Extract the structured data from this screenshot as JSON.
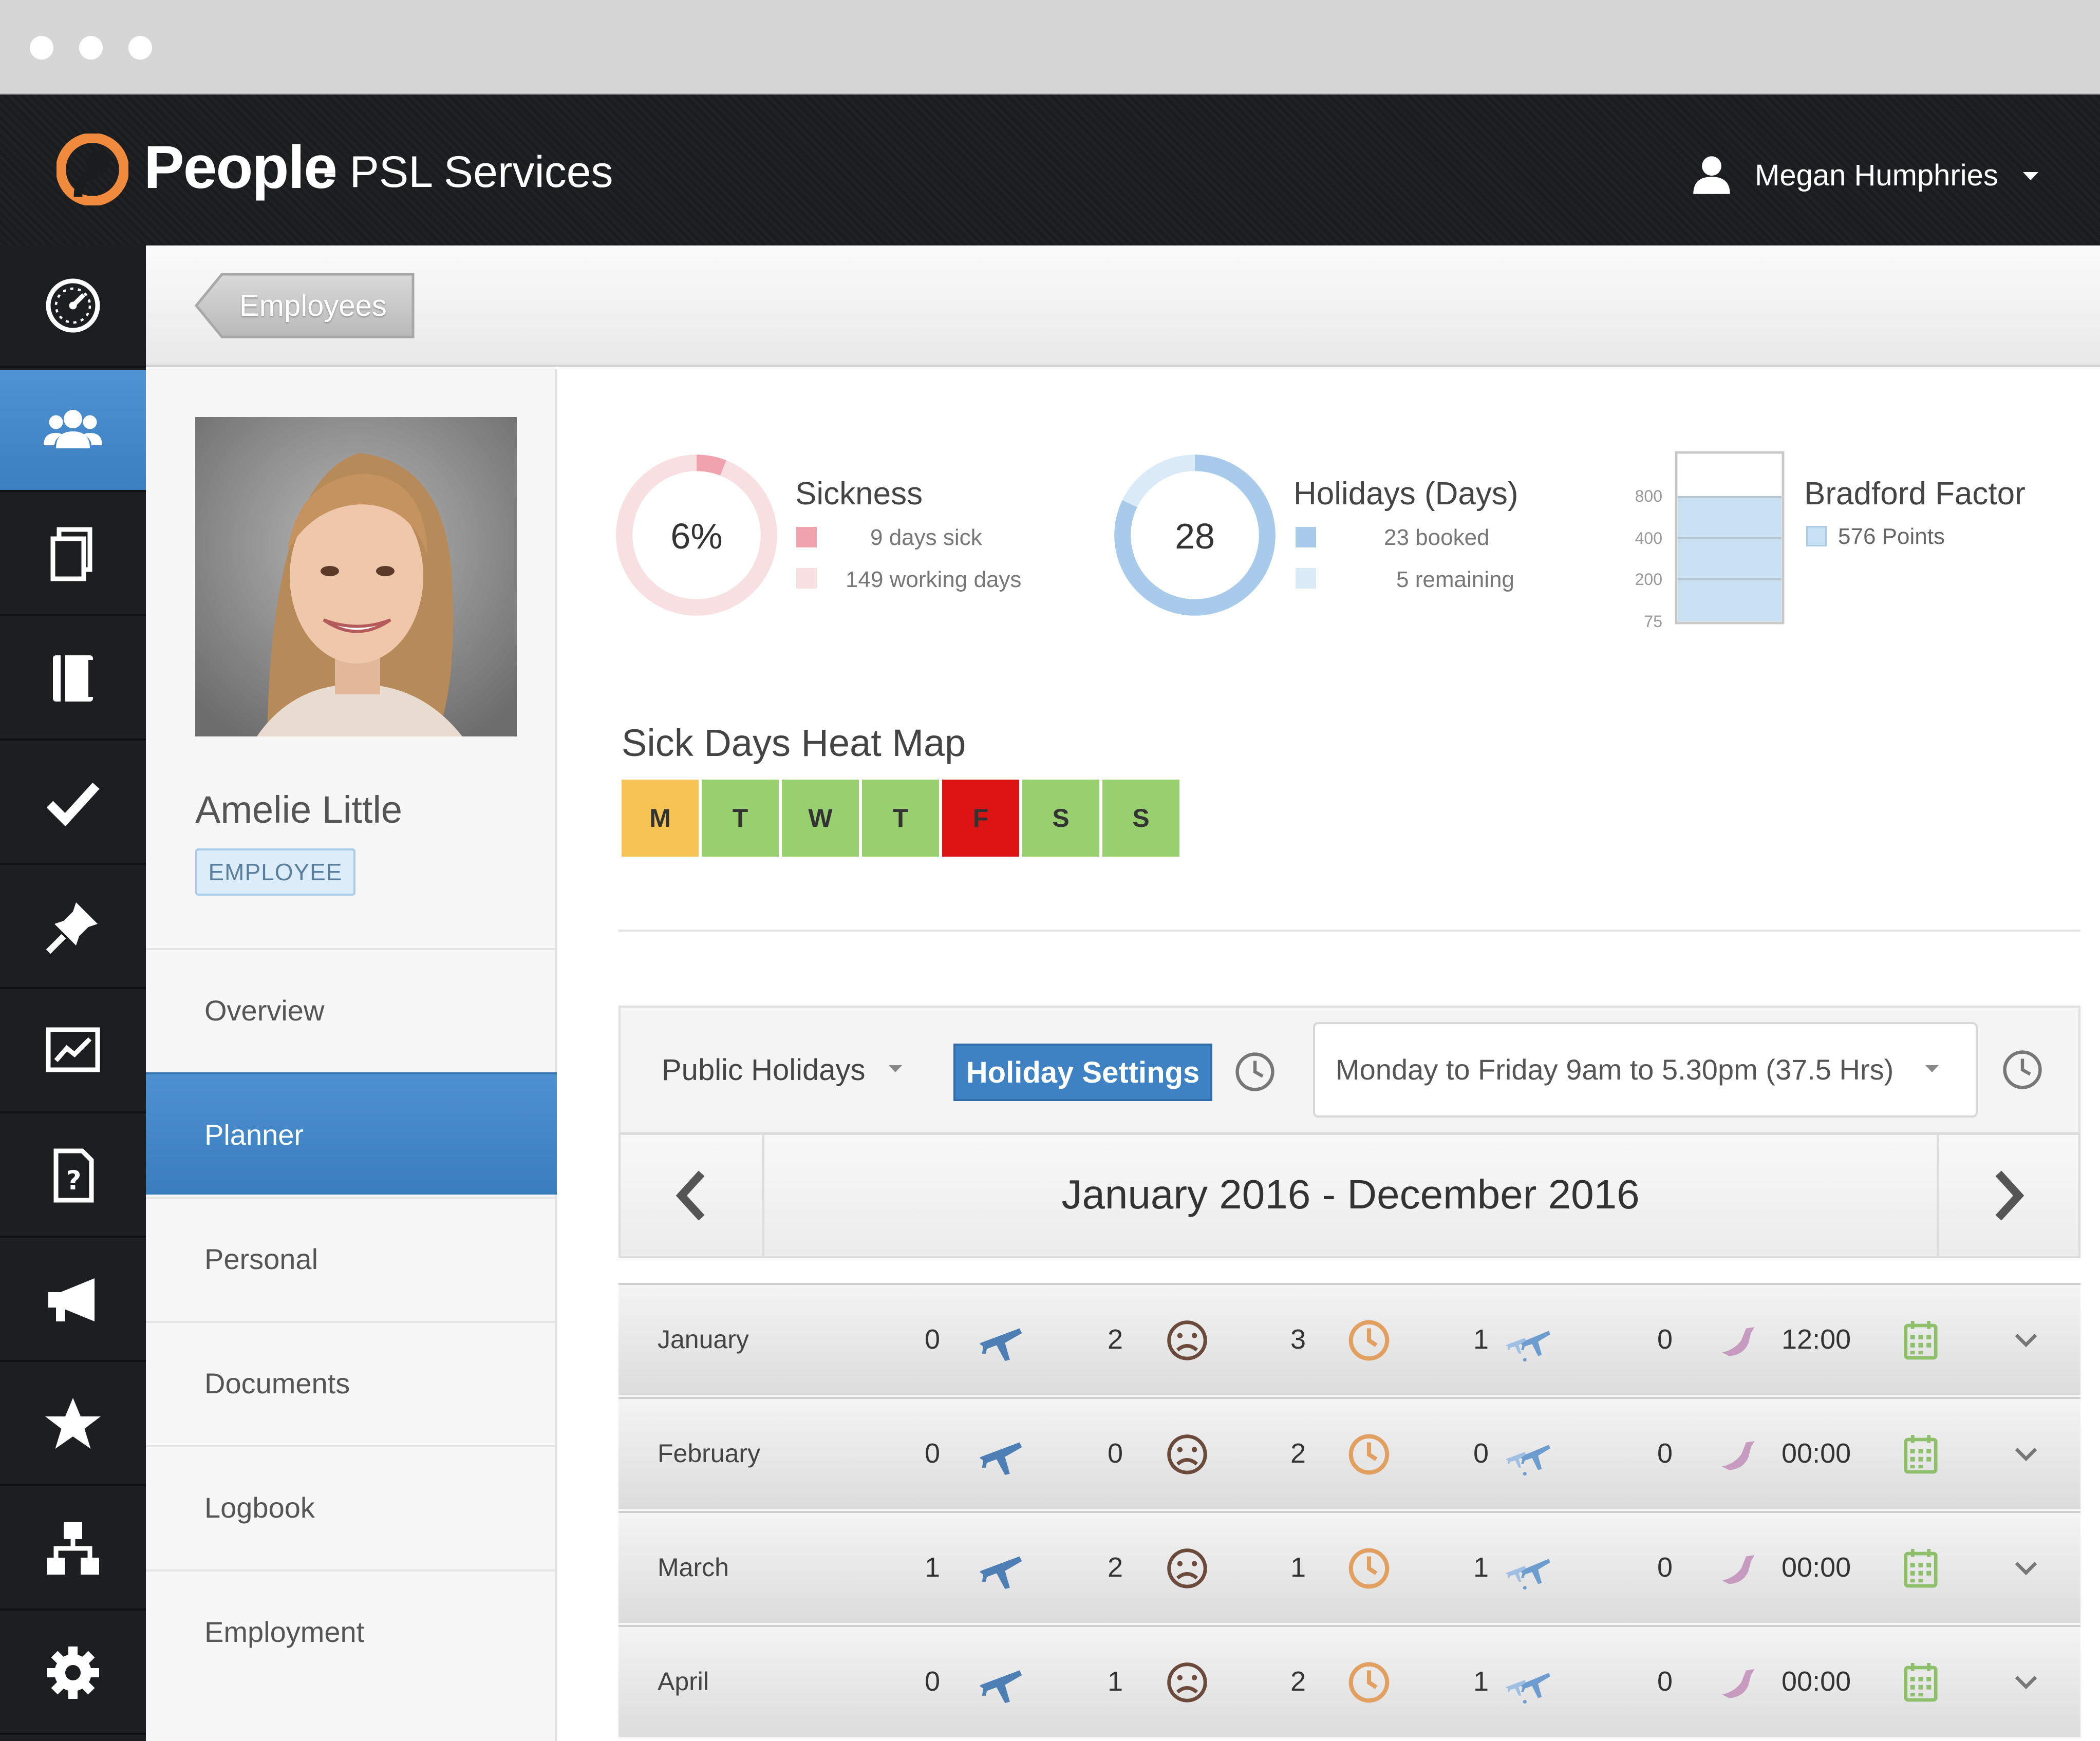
{
  "app": {
    "name": "People",
    "company": "- PSL Services",
    "user": "Megan Humphries"
  },
  "breadcrumb": {
    "label": "Employees"
  },
  "profile": {
    "name": "Amelie Little",
    "role_badge": "EMPLOYEE",
    "nav": [
      {
        "label": "Overview"
      },
      {
        "label": "Planner",
        "active": true
      },
      {
        "label": "Personal"
      },
      {
        "label": "Documents"
      },
      {
        "label": "Logbook"
      },
      {
        "label": "Employment"
      }
    ]
  },
  "stats": {
    "sickness": {
      "title": "Sickness",
      "percent_label": "6%",
      "percent": 6,
      "legend": [
        "9 days sick",
        "149 working days"
      ],
      "color": "#f0a3ad",
      "light": "#f8dfe2"
    },
    "holidays": {
      "title": "Holidays (Days)",
      "total_label": "28",
      "booked": 23,
      "remaining": 5,
      "legend": [
        "23 booked",
        "5 remaining"
      ],
      "color": "#a8cbec",
      "light": "#dbeaf7"
    },
    "bradford": {
      "title": "Bradford Factor",
      "legend": "576 Points",
      "ticks": [
        "800",
        "400",
        "200",
        "75"
      ],
      "color": "#c9e1f3"
    }
  },
  "heatmap": {
    "title": "Sick Days Heat Map",
    "days": [
      {
        "label": "M",
        "color": "#f6c452"
      },
      {
        "label": "T",
        "color": "#99d06f"
      },
      {
        "label": "W",
        "color": "#99d06f"
      },
      {
        "label": "T",
        "color": "#99d06f"
      },
      {
        "label": "F",
        "color": "#dd1414"
      },
      {
        "label": "S",
        "color": "#99d06f"
      },
      {
        "label": "S",
        "color": "#99d06f"
      }
    ]
  },
  "toolbar": {
    "public_holidays": "Public Holidays",
    "holiday_settings": "Holiday Settings",
    "working_hours": "Monday to Friday 9am to 5.30pm (37.5 Hrs)"
  },
  "range": {
    "label": "January 2016 - December 2016"
  },
  "months": [
    {
      "name": "January",
      "holiday": "0",
      "sick": "2",
      "late": "3",
      "other": "1",
      "lieu": "0",
      "time": "12:00"
    },
    {
      "name": "February",
      "holiday": "0",
      "sick": "0",
      "late": "2",
      "other": "0",
      "lieu": "0",
      "time": "00:00"
    },
    {
      "name": "March",
      "holiday": "1",
      "sick": "2",
      "late": "1",
      "other": "1",
      "lieu": "0",
      "time": "00:00"
    },
    {
      "name": "April",
      "holiday": "0",
      "sick": "1",
      "late": "2",
      "other": "1",
      "lieu": "0",
      "time": "00:00"
    }
  ],
  "icons": {
    "rail": [
      "dashboard-icon",
      "people-icon",
      "documents-icon",
      "book-icon",
      "check-icon",
      "pin-icon",
      "chart-icon",
      "help-document-icon",
      "megaphone-icon",
      "star-icon",
      "org-chart-icon",
      "gear-icon"
    ],
    "row": [
      "plane-icon",
      "sad-face-icon",
      "clock-icon",
      "planes-icon",
      "bird-icon",
      "calendar-icon",
      "chevron-down-icon"
    ]
  },
  "colors": {
    "accent": "#3e82c4",
    "header_bg": "#1b1c1e",
    "logo_orange": "#f08a3c"
  }
}
